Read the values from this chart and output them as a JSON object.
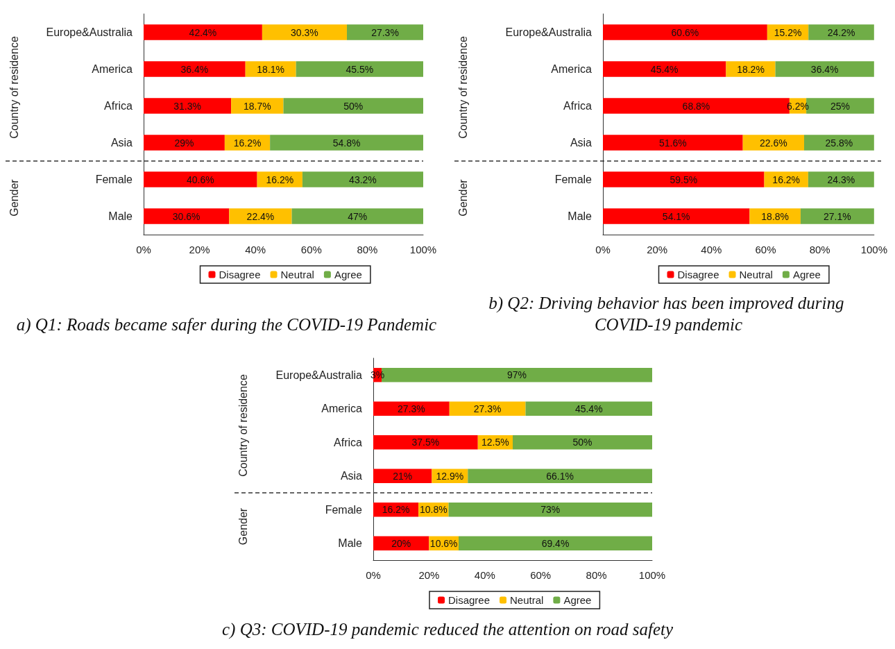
{
  "chart_data": [
    {
      "type": "bar",
      "orientation": "horizontal",
      "stacked": true,
      "title": "a) Q1: Roads became safer during the COVID-19 Pandemic",
      "categories": [
        "Europe&Australia",
        "America",
        "Africa",
        "Asia",
        "Female",
        "Male"
      ],
      "series": [
        {
          "name": "Disagree",
          "color": "#ff0000",
          "values": [
            42.4,
            36.4,
            31.3,
            29,
            40.6,
            30.6
          ],
          "value_labels": [
            "42.4%",
            "36.4%",
            "31.3%",
            "29%",
            "40.6%",
            "30.6%"
          ]
        },
        {
          "name": "Neutral",
          "color": "#ffc000",
          "values": [
            30.3,
            18.1,
            18.7,
            16.2,
            16.2,
            22.4
          ],
          "value_labels": [
            "30.3%",
            "18.1%",
            "18.7%",
            "16.2%",
            "16.2%",
            "22.4%"
          ]
        },
        {
          "name": "Agree",
          "color": "#70ad47",
          "values": [
            27.3,
            45.5,
            50,
            54.8,
            43.2,
            47
          ],
          "value_labels": [
            "27.3%",
            "45.5%",
            "50%",
            "54.8%",
            "43.2%",
            "47%"
          ]
        }
      ],
      "xlim": [
        0,
        100
      ],
      "xticks": [
        {
          "value": 0,
          "label": "0%"
        },
        {
          "value": 20,
          "label": "20%"
        },
        {
          "value": 40,
          "label": "40%"
        },
        {
          "value": 60,
          "label": "60%"
        },
        {
          "value": 80,
          "label": "80%"
        },
        {
          "value": 100,
          "label": "100%"
        }
      ],
      "annotations": [
        "Country of residence",
        "Gender"
      ],
      "legend": "bottom",
      "grid": false
    },
    {
      "type": "bar",
      "orientation": "horizontal",
      "stacked": true,
      "title": "b) Q2: Driving behavior has been improved during COVID-19 pandemic",
      "categories": [
        "Europe&Australia",
        "America",
        "Africa",
        "Asia",
        "Female",
        "Male"
      ],
      "series": [
        {
          "name": "Disagree",
          "color": "#ff0000",
          "values": [
            60.6,
            45.4,
            68.8,
            51.6,
            59.5,
            54.1
          ],
          "value_labels": [
            "60.6%",
            "45.4%",
            "68.8%",
            "51.6%",
            "59.5%",
            "54.1%"
          ]
        },
        {
          "name": "Neutral",
          "color": "#ffc000",
          "values": [
            15.2,
            18.2,
            6.2,
            22.6,
            16.2,
            18.8
          ],
          "value_labels": [
            "15.2%",
            "18.2%",
            "6.2%",
            "22.6%",
            "16.2%",
            "18.8%"
          ]
        },
        {
          "name": "Agree",
          "color": "#70ad47",
          "values": [
            24.2,
            36.4,
            25,
            25.8,
            24.3,
            27.1
          ],
          "value_labels": [
            "24.2%",
            "36.4%",
            "25%",
            "25.8%",
            "24.3%",
            "27.1%"
          ]
        }
      ],
      "xlim": [
        0,
        100
      ],
      "xticks": [
        {
          "value": 0,
          "label": "0%"
        },
        {
          "value": 20,
          "label": "20%"
        },
        {
          "value": 40,
          "label": "40%"
        },
        {
          "value": 60,
          "label": "60%"
        },
        {
          "value": 80,
          "label": "80%"
        },
        {
          "value": 100,
          "label": "100%"
        }
      ],
      "annotations": [
        "Country of residence",
        "Gender"
      ],
      "legend": "bottom",
      "grid": false
    },
    {
      "type": "bar",
      "orientation": "horizontal",
      "stacked": true,
      "title": "c) Q3: COVID-19 pandemic reduced the attention on road safety",
      "categories": [
        "Europe&Australia",
        "America",
        "Africa",
        "Asia",
        "Female",
        "Male"
      ],
      "series": [
        {
          "name": "Disagree",
          "color": "#ff0000",
          "values": [
            3,
            27.3,
            37.5,
            21,
            16.2,
            20
          ],
          "value_labels": [
            "3%",
            "27.3%",
            "37.5%",
            "21%",
            "16.2%",
            "20%"
          ]
        },
        {
          "name": "Neutral",
          "color": "#ffc000",
          "values": [
            null,
            27.3,
            12.5,
            12.9,
            10.8,
            10.6
          ],
          "value_labels": [
            null,
            "27.3%",
            "12.5%",
            "12.9%",
            "10.8%",
            "10.6%"
          ]
        },
        {
          "name": "Agree",
          "color": "#70ad47",
          "values": [
            97,
            45.4,
            50,
            66.1,
            73,
            69.4
          ],
          "value_labels": [
            "97%",
            "45.4%",
            "50%",
            "66.1%",
            "73%",
            "69.4%"
          ]
        }
      ],
      "xlim": [
        0,
        100
      ],
      "xticks": [
        {
          "value": 0,
          "label": "0%"
        },
        {
          "value": 20,
          "label": "20%"
        },
        {
          "value": 40,
          "label": "40%"
        },
        {
          "value": 60,
          "label": "60%"
        },
        {
          "value": 80,
          "label": "80%"
        },
        {
          "value": 100,
          "label": "100%"
        }
      ],
      "annotations": [
        "Country of residence",
        "Gender"
      ],
      "legend": "bottom",
      "grid": false
    }
  ]
}
